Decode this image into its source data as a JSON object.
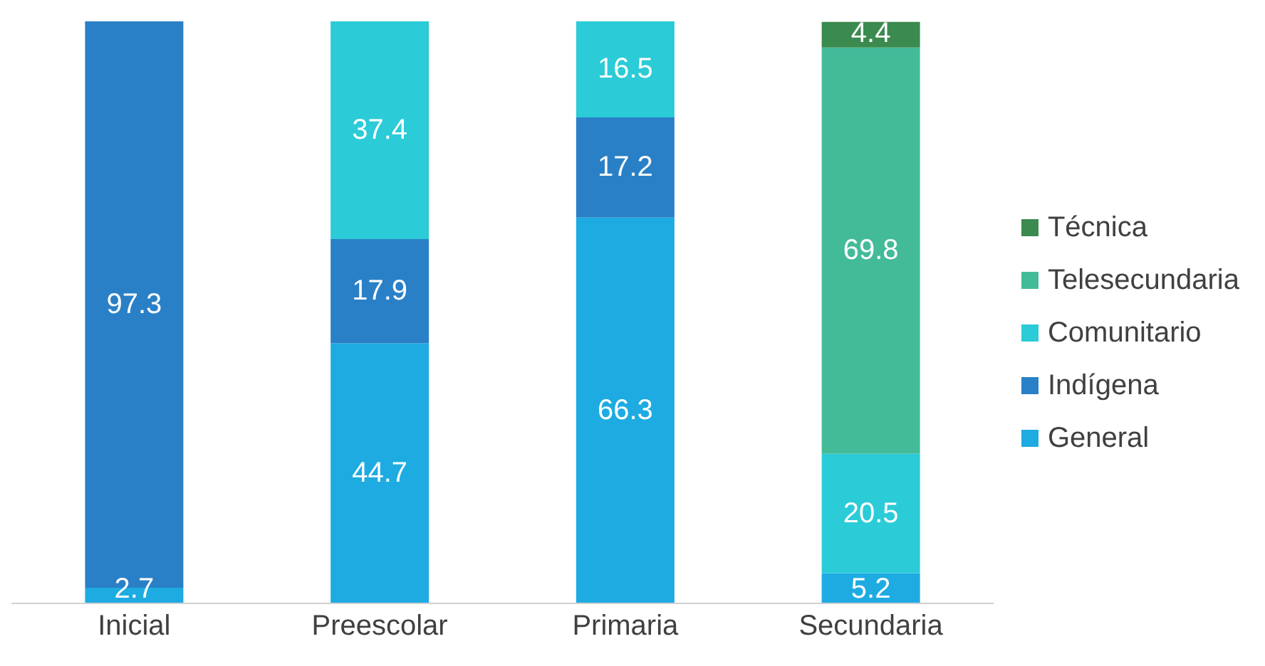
{
  "chart_data": {
    "type": "bar",
    "stacked": true,
    "categories": [
      "Inicial",
      "Preescolar",
      "Primaria",
      "Secundaria"
    ],
    "series": [
      {
        "name": "General",
        "color": "#1eabe2",
        "values": [
          2.7,
          44.7,
          66.3,
          5.2
        ]
      },
      {
        "name": "Indígena",
        "color": "#2a80c6",
        "values": [
          97.3,
          17.9,
          17.2,
          null
        ]
      },
      {
        "name": "Comunitario",
        "color": "#2bcbd8",
        "values": [
          null,
          37.4,
          16.5,
          20.5
        ]
      },
      {
        "name": "Telesecundaria",
        "color": "#43bb98",
        "values": [
          null,
          null,
          null,
          69.8
        ]
      },
      {
        "name": "Técnica",
        "color": "#3b8a4f",
        "values": [
          null,
          null,
          null,
          4.4
        ]
      }
    ],
    "ylim": [
      0,
      100
    ],
    "tick_labels": "x",
    "data_labels": true,
    "legend": "right",
    "grid": false
  }
}
